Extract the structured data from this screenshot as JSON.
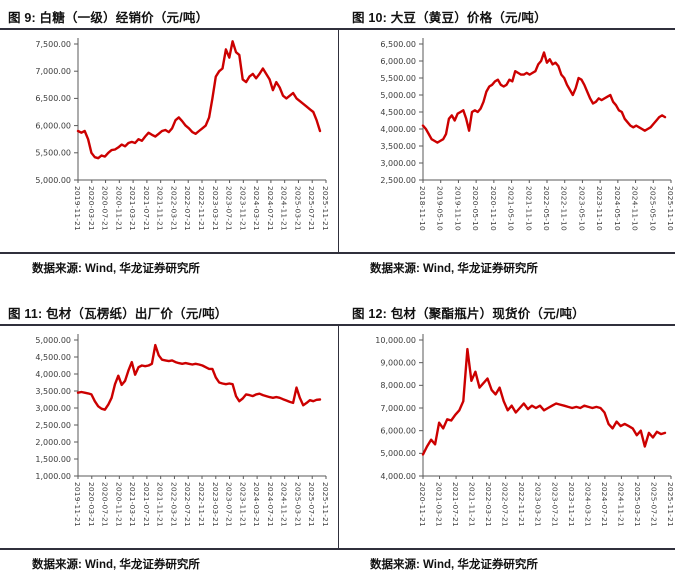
{
  "figures": [
    {
      "title": "图 9: 白糖（一级）经销价（元/吨）",
      "source": "数据来源: Wind, 华龙证券研究所"
    },
    {
      "title": "图 10: 大豆（黄豆）价格（元/吨）",
      "source": "数据来源: Wind, 华龙证券研究所"
    },
    {
      "title": "图 11: 包材（瓦楞纸）出厂价（元/吨）",
      "source": "数据来源: Wind, 华龙证券研究所"
    },
    {
      "title": "图 12: 包材（聚酯瓶片）现货价（元/吨）",
      "source": "数据来源: Wind, 华龙证券研究所"
    }
  ],
  "chart_data": [
    {
      "type": "line",
      "title": "图 9: 白糖（一级）经销价（元/吨）",
      "series_name": "白糖（一级）经销价",
      "ylim": [
        5000,
        7500
      ],
      "y_ticks": [
        "5,000.00",
        "5,500.00",
        "6,000.00",
        "6,500.00",
        "7,000.00",
        "7,500.00"
      ],
      "x_ticks": [
        "2019-11-21",
        "2020-03-21",
        "2020-07-21",
        "2020-11-21",
        "2021-03-21",
        "2021-07-21",
        "2021-11-21",
        "2022-03-21",
        "2022-07-21",
        "2022-11-21",
        "2023-03-21",
        "2023-07-21",
        "2023-11-21",
        "2024-03-21",
        "2024-07-21",
        "2024-11-21",
        "2025-03-21",
        "2025-07-21",
        "2025-11-21"
      ],
      "x_start": "2019-11",
      "x_end": "2025-11",
      "freq": "monthly",
      "color": "#cc0000",
      "values": [
        5900,
        5870,
        5900,
        5750,
        5500,
        5420,
        5400,
        5450,
        5430,
        5500,
        5550,
        5560,
        5600,
        5650,
        5620,
        5680,
        5700,
        5680,
        5750,
        5720,
        5800,
        5870,
        5830,
        5800,
        5850,
        5900,
        5920,
        5880,
        5950,
        6100,
        6150,
        6080,
        6000,
        5950,
        5880,
        5850,
        5900,
        5950,
        6000,
        6150,
        6500,
        6900,
        7000,
        7050,
        7400,
        7250,
        7550,
        7350,
        7300,
        6850,
        6800,
        6900,
        6950,
        6870,
        6950,
        7050,
        6950,
        6850,
        6650,
        6800,
        6700,
        6550,
        6500,
        6550,
        6600,
        6500,
        6450,
        6400,
        6350,
        6300,
        6250,
        6100,
        5900
      ]
    },
    {
      "type": "line",
      "title": "图 10: 大豆（黄豆）价格（元/吨）",
      "series_name": "大豆（黄豆）价格",
      "ylim": [
        2500,
        6500
      ],
      "y_ticks": [
        "2,500.00",
        "3,000.00",
        "3,500.00",
        "4,000.00",
        "4,500.00",
        "5,000.00",
        "5,500.00",
        "6,000.00",
        "6,500.00"
      ],
      "x_ticks": [
        "2018-11-10",
        "2019-05-10",
        "2019-11-10",
        "2020-05-10",
        "2020-11-10",
        "2021-05-10",
        "2021-11-10",
        "2022-05-10",
        "2022-11-10",
        "2023-05-10",
        "2023-11-10",
        "2024-05-10",
        "2024-11-10",
        "2025-05-10",
        "2025-11-10"
      ],
      "x_start": "2018-11",
      "x_end": "2025-11",
      "freq": "monthly",
      "color": "#cc0000",
      "values": [
        4100,
        4000,
        3850,
        3700,
        3650,
        3600,
        3650,
        3700,
        3850,
        4300,
        4400,
        4250,
        4450,
        4500,
        4550,
        4300,
        3950,
        4500,
        4550,
        4500,
        4600,
        4800,
        5100,
        5250,
        5300,
        5400,
        5450,
        5300,
        5250,
        5300,
        5450,
        5400,
        5700,
        5650,
        5600,
        5600,
        5650,
        5600,
        5650,
        5700,
        5900,
        6000,
        6250,
        5950,
        6050,
        5900,
        5950,
        5850,
        5600,
        5500,
        5300,
        5150,
        5000,
        5200,
        5500,
        5450,
        5300,
        5100,
        4900,
        4750,
        4800,
        4900,
        4850,
        4900,
        4950,
        5000,
        4800,
        4700,
        4550,
        4500,
        4300,
        4200,
        4100,
        4050,
        4100,
        4050,
        4000,
        3950,
        4000,
        4050,
        4150,
        4250,
        4350,
        4400,
        4350
      ]
    },
    {
      "type": "line",
      "title": "图 11: 包材（瓦楞纸）出厂价（元/吨）",
      "series_name": "瓦楞纸出厂价",
      "ylim": [
        1000,
        5000
      ],
      "y_ticks": [
        "1,000.00",
        "1,500.00",
        "2,000.00",
        "2,500.00",
        "3,000.00",
        "3,500.00",
        "4,000.00",
        "4,500.00",
        "5,000.00"
      ],
      "x_ticks": [
        "2019-11-21",
        "2020-03-21",
        "2020-07-21",
        "2020-11-21",
        "2021-03-21",
        "2021-07-21",
        "2021-11-21",
        "2022-03-21",
        "2022-07-21",
        "2022-11-21",
        "2023-03-21",
        "2023-07-21",
        "2023-11-21",
        "2024-03-21",
        "2024-07-21",
        "2024-11-21",
        "2025-03-21",
        "2025-07-21",
        "2025-11-21"
      ],
      "x_start": "2019-11",
      "x_end": "2025-11",
      "freq": "monthly",
      "color": "#cc0000",
      "values": [
        3450,
        3470,
        3450,
        3430,
        3400,
        3200,
        3050,
        2980,
        2950,
        3100,
        3300,
        3700,
        3950,
        3680,
        3800,
        4100,
        4350,
        3980,
        4200,
        4250,
        4230,
        4250,
        4300,
        4850,
        4550,
        4420,
        4400,
        4380,
        4400,
        4350,
        4320,
        4300,
        4320,
        4300,
        4280,
        4300,
        4280,
        4250,
        4200,
        4150,
        4150,
        3900,
        3750,
        3720,
        3700,
        3720,
        3700,
        3350,
        3200,
        3280,
        3400,
        3380,
        3350,
        3400,
        3420,
        3380,
        3350,
        3320,
        3300,
        3320,
        3300,
        3260,
        3220,
        3180,
        3150,
        3600,
        3300,
        3080,
        3150,
        3230,
        3200,
        3240,
        3250
      ]
    },
    {
      "type": "line",
      "title": "图 12: 包材（聚酯瓶片）现货价（元/吨）",
      "series_name": "聚酯瓶片现货价",
      "ylim": [
        4000,
        10000
      ],
      "y_ticks": [
        "4,000.00",
        "5,000.00",
        "6,000.00",
        "7,000.00",
        "8,000.00",
        "9,000.00",
        "10,000.00"
      ],
      "x_ticks": [
        "2020-11-21",
        "2021-03-21",
        "2021-07-21",
        "2021-11-21",
        "2022-03-21",
        "2022-07-21",
        "2022-11-21",
        "2023-03-21",
        "2023-07-21",
        "2023-11-21",
        "2024-03-21",
        "2024-07-21",
        "2024-11-21",
        "2025-03-21",
        "2025-07-21",
        "2025-11-21"
      ],
      "x_start": "2020-11",
      "x_end": "2025-11",
      "freq": "monthly",
      "color": "#cc0000",
      "values": [
        4950,
        5300,
        5600,
        5400,
        6350,
        6100,
        6500,
        6450,
        6700,
        6900,
        7300,
        9600,
        8200,
        8600,
        7900,
        8100,
        8300,
        7800,
        7600,
        7900,
        7300,
        6900,
        7100,
        6800,
        7000,
        7200,
        6950,
        7100,
        7000,
        7100,
        6900,
        7000,
        7100,
        7200,
        7150,
        7100,
        7050,
        7000,
        7050,
        7000,
        7100,
        7050,
        7000,
        7050,
        7000,
        6800,
        6300,
        6100,
        6400,
        6200,
        6300,
        6200,
        6100,
        5800,
        6000,
        5300,
        5900,
        5700,
        5950,
        5850,
        5900
      ]
    }
  ]
}
